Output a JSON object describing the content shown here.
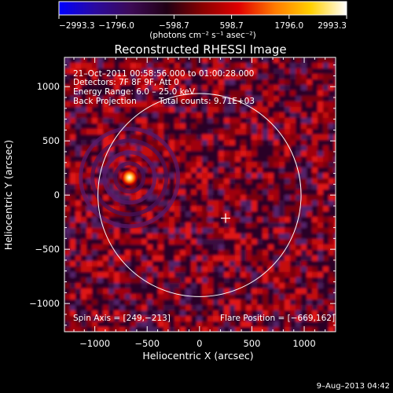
{
  "colorbar": {
    "tick_labels": [
      "−2993.3",
      "−1796.0",
      "−598.7",
      "598.7",
      "1796.0",
      "2993.3"
    ],
    "tick_values": [
      -2993.3,
      -1796.0,
      -598.7,
      598.7,
      1796.0,
      2993.3
    ],
    "unit_label": "(photons cm⁻² s⁻¹ asec⁻²)",
    "stops": [
      "#0000ff",
      "#2a0aa0",
      "#3c0a55",
      "#200014",
      "#8a0000",
      "#e00000",
      "#ff7a00",
      "#ffd000",
      "#ffffff"
    ]
  },
  "chart_data": {
    "type": "heatmap",
    "title": "Reconstructed RHESSI Image",
    "xlabel": "Heliocentric X (arcsec)",
    "ylabel": "Heliocentric Y (arcsec)",
    "xlim": [
      -1290,
      1300
    ],
    "ylim": [
      -1260,
      1270
    ],
    "x_ticks": [
      -1000,
      -500,
      0,
      500,
      1000
    ],
    "x_tick_labels": [
      "−1000",
      "−500",
      "0",
      "500",
      "1000"
    ],
    "y_ticks": [
      -1000,
      -500,
      0,
      500,
      1000
    ],
    "y_tick_labels": [
      "−1000",
      "−500",
      "0",
      "500",
      "1000"
    ],
    "solar_limb": {
      "center": [
        0,
        0
      ],
      "radius_arcsec": 970
    },
    "spin_axis": [
      249,
      -213
    ],
    "flare_position": [
      -669,
      162
    ],
    "annotations": [
      "21–Oct–2011 00:58:56.000 to 01:00:28.000",
      "Detectors: 7F 8F 9F, Att 0",
      "Energy Range: 6.0 – 25.0 keV",
      "Back Projection",
      "Total counts: 9.71E+03"
    ],
    "spin_axis_label": "Spin Axis = [249,−213]",
    "flare_position_label": "Flare Position = [−669,162]"
  },
  "footer": {
    "date_stamp": "9–Aug–2013 04:42"
  }
}
